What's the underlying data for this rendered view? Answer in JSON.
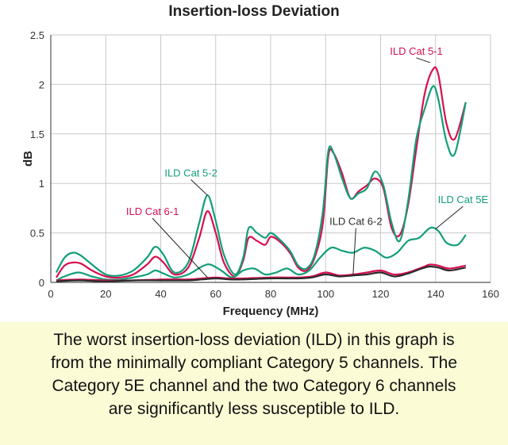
{
  "chart_data": {
    "type": "line",
    "title": "Insertion-loss Deviation",
    "xlabel": "Frequency (MHz)",
    "ylabel": "dB",
    "xlim": [
      0,
      160
    ],
    "ylim": [
      0,
      2.5
    ],
    "xticks": [
      0,
      20,
      40,
      60,
      80,
      100,
      120,
      140,
      160
    ],
    "yticks": [
      0,
      0.5,
      1,
      1.5,
      2,
      2.5
    ],
    "ytick_labels": [
      "0",
      "0.5",
      "1",
      "1.5",
      "2",
      "2.5"
    ],
    "grid": true,
    "series": [
      {
        "name": "ILD Cat 5-1",
        "color": "#d6104f",
        "x": [
          2,
          5,
          8,
          11,
          15,
          20,
          25,
          30,
          35,
          38,
          41,
          45,
          50,
          54,
          57,
          60,
          63,
          67,
          70,
          72,
          75,
          78,
          80,
          83,
          87,
          90,
          93,
          96,
          99,
          101,
          103,
          106,
          109,
          112,
          115,
          118,
          121,
          124,
          127,
          130,
          133,
          136,
          139,
          141,
          144,
          147,
          151
        ],
        "y": [
          0.05,
          0.17,
          0.2,
          0.19,
          0.12,
          0.06,
          0.05,
          0.08,
          0.18,
          0.26,
          0.2,
          0.08,
          0.15,
          0.45,
          0.72,
          0.5,
          0.2,
          0.06,
          0.22,
          0.45,
          0.42,
          0.38,
          0.46,
          0.42,
          0.3,
          0.15,
          0.12,
          0.25,
          0.6,
          1.28,
          1.3,
          1.1,
          0.85,
          0.92,
          0.98,
          1.05,
          0.95,
          0.55,
          0.48,
          0.78,
          1.35,
          1.9,
          2.15,
          2.1,
          1.6,
          1.45,
          1.82
        ]
      },
      {
        "name": "ILD Cat 5-2",
        "color": "#129e7a",
        "x": [
          2,
          5,
          8,
          11,
          15,
          20,
          25,
          30,
          35,
          38,
          41,
          45,
          50,
          54,
          57,
          60,
          63,
          67,
          70,
          72,
          75,
          78,
          80,
          83,
          87,
          90,
          93,
          96,
          99,
          101,
          103,
          106,
          109,
          112,
          115,
          118,
          121,
          124,
          127,
          130,
          133,
          136,
          139,
          141,
          144,
          147,
          151
        ],
        "y": [
          0.1,
          0.25,
          0.3,
          0.27,
          0.18,
          0.08,
          0.07,
          0.12,
          0.25,
          0.36,
          0.28,
          0.1,
          0.2,
          0.6,
          0.88,
          0.62,
          0.28,
          0.08,
          0.25,
          0.55,
          0.5,
          0.45,
          0.5,
          0.44,
          0.32,
          0.17,
          0.14,
          0.28,
          0.72,
          1.33,
          1.3,
          1.05,
          0.85,
          0.9,
          0.95,
          1.12,
          0.98,
          0.6,
          0.42,
          0.82,
          1.45,
          1.75,
          1.98,
          1.85,
          1.42,
          1.3,
          1.82
        ]
      },
      {
        "name": "ILD Cat 5E",
        "color": "#129e7a",
        "x": [
          2,
          5,
          10,
          15,
          20,
          25,
          30,
          35,
          38,
          41,
          45,
          50,
          55,
          58,
          62,
          66,
          70,
          74,
          78,
          82,
          86,
          90,
          94,
          98,
          102,
          106,
          110,
          114,
          118,
          122,
          126,
          130,
          134,
          138,
          141,
          144,
          148,
          151
        ],
        "y": [
          0.02,
          0.06,
          0.1,
          0.06,
          0.03,
          0.03,
          0.05,
          0.08,
          0.12,
          0.09,
          0.05,
          0.08,
          0.16,
          0.18,
          0.12,
          0.05,
          0.12,
          0.14,
          0.08,
          0.1,
          0.14,
          0.08,
          0.12,
          0.25,
          0.35,
          0.32,
          0.3,
          0.35,
          0.32,
          0.25,
          0.3,
          0.42,
          0.45,
          0.55,
          0.52,
          0.4,
          0.38,
          0.48
        ]
      },
      {
        "name": "ILD Cat 6-1",
        "color": "#d6104f",
        "x": [
          2,
          10,
          20,
          30,
          40,
          50,
          55,
          60,
          65,
          70,
          80,
          90,
          95,
          100,
          105,
          110,
          115,
          120,
          125,
          130,
          135,
          138,
          141,
          145,
          151
        ],
        "y": [
          0.02,
          0.03,
          0.02,
          0.02,
          0.03,
          0.03,
          0.04,
          0.05,
          0.04,
          0.04,
          0.05,
          0.05,
          0.06,
          0.1,
          0.07,
          0.08,
          0.1,
          0.12,
          0.08,
          0.1,
          0.15,
          0.18,
          0.17,
          0.14,
          0.17
        ]
      },
      {
        "name": "ILD Cat 6-2",
        "color": "#2b2b2b",
        "x": [
          2,
          10,
          20,
          30,
          40,
          50,
          55,
          60,
          65,
          70,
          80,
          90,
          95,
          100,
          105,
          110,
          115,
          120,
          125,
          130,
          135,
          138,
          141,
          145,
          151
        ],
        "y": [
          0.01,
          0.02,
          0.01,
          0.02,
          0.02,
          0.02,
          0.03,
          0.04,
          0.03,
          0.03,
          0.04,
          0.04,
          0.05,
          0.08,
          0.06,
          0.07,
          0.08,
          0.1,
          0.06,
          0.09,
          0.14,
          0.16,
          0.15,
          0.12,
          0.15
        ]
      }
    ],
    "annotations": [
      {
        "text": "ILD Cat 5-1",
        "color": "#d6104f",
        "x": 138,
        "y": 2.22,
        "label_x": 133,
        "label_y": 2.3
      },
      {
        "text": "ILD Cat 5-2",
        "color": "#129e7a",
        "x": 57,
        "y": 0.88,
        "label_x": 51,
        "label_y": 1.07
      },
      {
        "text": "ILD Cat 6-1",
        "color": "#d6104f",
        "x": 57,
        "y": 0.05,
        "label_x": 37,
        "label_y": 0.68
      },
      {
        "text": "ILD Cat 6-2",
        "color": "#2b2b2b",
        "x": 110,
        "y": 0.08,
        "label_x": 111,
        "label_y": 0.58
      },
      {
        "text": "ILD Cat 5E",
        "color": "#129e7a",
        "x": 140,
        "y": 0.54,
        "label_x": 150,
        "label_y": 0.8
      }
    ]
  },
  "caption": {
    "lines": [
      "The worst insertion-loss deviation (ILD) in this graph is",
      "from the minimally compliant Category 5 channels. The",
      "Category 5E channel and the two Category 6 channels",
      "are significantly less susceptible to ILD."
    ]
  }
}
